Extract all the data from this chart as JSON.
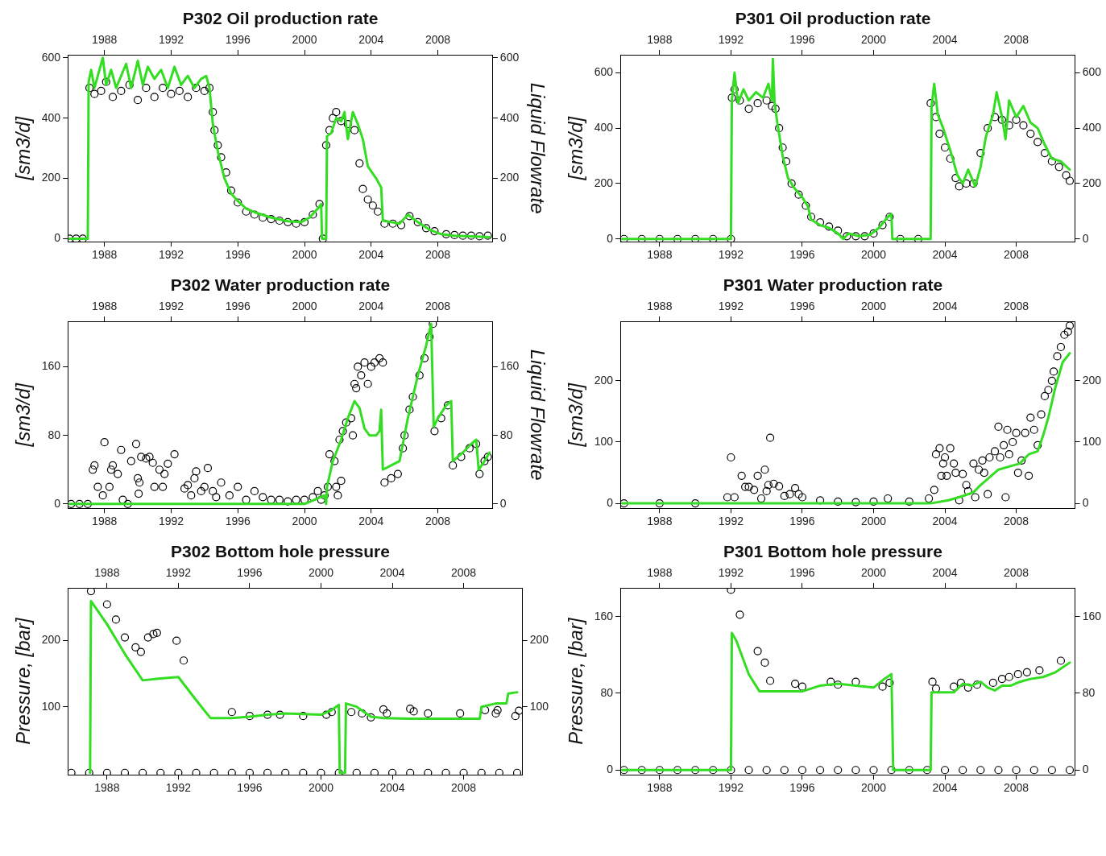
{
  "chart_data": [
    {
      "type": "line",
      "title": "P302 Oil production rate",
      "ylabel": "[sm3/d]",
      "y2label": "Liquid Flowrate",
      "xlim": [
        1985.8,
        2011.3
      ],
      "xticks": [
        1988,
        1992,
        1996,
        2000,
        2004,
        2008
      ],
      "x2lim": [
        1985.8,
        2011.3
      ],
      "x2ticks": [
        1988,
        1992,
        1996,
        2000,
        2004,
        2008
      ],
      "ylim": [
        -10,
        610
      ],
      "yticks": [
        0,
        200,
        400,
        600
      ],
      "y2lim": [
        -10,
        610
      ],
      "y2ticks": [
        0,
        200,
        400,
        600
      ],
      "grid": false,
      "legend": false,
      "line_style": "solid",
      "series": [
        {
          "type": "line",
          "color": "#33dd22",
          "x": [
            1985.9,
            1987.0,
            1987.05,
            1987.2,
            1987.4,
            1987.6,
            1987.9,
            1988.1,
            1988.4,
            1988.7,
            1989.0,
            1989.3,
            1989.6,
            1990.0,
            1990.3,
            1990.6,
            1991.0,
            1991.4,
            1991.8,
            1992.2,
            1992.6,
            1993.0,
            1993.4,
            1993.8,
            1994.1,
            1994.3,
            1994.5,
            1994.8,
            1995.2,
            1995.6,
            1996.0,
            1996.5,
            1997,
            1998,
            1999,
            1999.8,
            2000.3,
            2000.8,
            2001.0,
            2001.05,
            2001.3,
            2001.35,
            2001.6,
            2001.9,
            2002.2,
            2002.4,
            2002.6,
            2002.9,
            2003.2,
            2003.5,
            2003.8,
            2004.3,
            2004.6,
            2004.7,
            2005.2,
            2005.7,
            2006.2,
            2006.8,
            2007.5,
            2008.2,
            2009,
            2010,
            2011.1
          ],
          "values": [
            0,
            0,
            520,
            560,
            500,
            540,
            600,
            510,
            560,
            500,
            540,
            580,
            500,
            590,
            510,
            570,
            530,
            560,
            500,
            570,
            510,
            540,
            500,
            530,
            540,
            500,
            380,
            290,
            200,
            150,
            125,
            100,
            88,
            70,
            58,
            55,
            70,
            100,
            115,
            0,
            0,
            340,
            350,
            400,
            390,
            420,
            330,
            420,
            380,
            330,
            240,
            200,
            170,
            60,
            55,
            50,
            80,
            55,
            30,
            15,
            10,
            8,
            5
          ]
        },
        {
          "type": "scatter",
          "color": "#000000",
          "marker": "circle",
          "x": [
            1985.9,
            1986.3,
            1986.7,
            1987.1,
            1987.4,
            1987.8,
            1988.1,
            1988.5,
            1989,
            1989.5,
            1990,
            1990.5,
            1991,
            1991.5,
            1992,
            1992.5,
            1993,
            1993.5,
            1994,
            1994.3,
            1994.5,
            1994.6,
            1994.8,
            1995,
            1995.3,
            1995.6,
            1996,
            1996.5,
            1997,
            1997.5,
            1998,
            1998.5,
            1999,
            1999.5,
            2000,
            2000.5,
            2000.9,
            2001.1,
            2001.3,
            2001.5,
            2001.7,
            2001.9,
            2002.2,
            2002.6,
            2003,
            2003.3,
            2003.5,
            2003.8,
            2004.1,
            2004.4,
            2004.8,
            2005.3,
            2005.8,
            2006.3,
            2006.8,
            2007.3,
            2007.8,
            2008.5,
            2009,
            2009.5,
            2010,
            2010.5,
            2011
          ],
          "values": [
            0,
            0,
            0,
            500,
            480,
            490,
            520,
            470,
            490,
            510,
            460,
            500,
            470,
            500,
            480,
            490,
            470,
            500,
            490,
            500,
            420,
            360,
            310,
            270,
            220,
            160,
            120,
            90,
            80,
            70,
            65,
            60,
            55,
            50,
            55,
            80,
            115,
            0,
            310,
            360,
            400,
            420,
            390,
            380,
            360,
            250,
            165,
            130,
            110,
            90,
            50,
            50,
            45,
            75,
            55,
            35,
            25,
            15,
            12,
            10,
            10,
            8,
            10
          ]
        }
      ]
    },
    {
      "type": "line",
      "title": "P301 Oil production rate",
      "ylabel": "[sm3/d]",
      "xlim": [
        1985.8,
        2011.3
      ],
      "xticks": [
        1988,
        1992,
        1996,
        2000,
        2004,
        2008
      ],
      "x2lim": [
        1985.8,
        2011.3
      ],
      "x2ticks": [
        1988,
        1992,
        1996,
        2000,
        2004,
        2008
      ],
      "ylim": [
        -10,
        665
      ],
      "yticks": [
        0,
        200,
        400,
        600
      ],
      "y2lim": [
        -10,
        665
      ],
      "y2ticks": [
        0,
        200,
        400,
        600
      ],
      "grid": false,
      "legend": false,
      "line_style": "solid",
      "series": [
        {
          "type": "line",
          "color": "#33dd22",
          "x": [
            1985.9,
            1992.0,
            1992.05,
            1992.2,
            1992.4,
            1992.7,
            1993,
            1993.4,
            1993.8,
            1994.1,
            1994.3,
            1994.35,
            1994.45,
            1994.6,
            1994.9,
            1995.2,
            1995.6,
            1996,
            1996.3,
            1996.5,
            1997,
            1997.5,
            1998,
            1998.3,
            1998.6,
            1999.2,
            1999.8,
            2000.3,
            2000.8,
            2001.0,
            2001.05,
            2003.2,
            2003.25,
            2003.4,
            2003.6,
            2003.9,
            2004.3,
            2004.7,
            2005,
            2005.3,
            2005.7,
            2006,
            2006.3,
            2006.7,
            2006.9,
            2007.2,
            2007.4,
            2007.6,
            2008,
            2008.4,
            2008.8,
            2009.2,
            2009.6,
            2010,
            2010.5,
            2011
          ],
          "values": [
            0,
            0,
            500,
            600,
            490,
            540,
            500,
            530,
            510,
            560,
            500,
            650,
            490,
            420,
            300,
            220,
            180,
            150,
            120,
            70,
            50,
            40,
            20,
            0,
            20,
            10,
            15,
            40,
            80,
            90,
            0,
            0,
            480,
            560,
            450,
            400,
            320,
            230,
            200,
            250,
            190,
            260,
            370,
            450,
            530,
            440,
            360,
            500,
            440,
            480,
            420,
            400,
            340,
            290,
            280,
            250
          ]
        },
        {
          "type": "scatter",
          "color": "#000000",
          "marker": "circle",
          "x": [
            1986,
            1987,
            1988,
            1989,
            1990,
            1991,
            1992,
            1992.05,
            1992.2,
            1992.5,
            1993,
            1993.5,
            1994,
            1994.3,
            1994.5,
            1994.7,
            1994.9,
            1995.1,
            1995.4,
            1995.8,
            1996.2,
            1996.5,
            1997,
            1997.5,
            1998,
            1998.5,
            1999,
            1999.5,
            2000,
            2000.5,
            2000.9,
            2001.5,
            2002.5,
            2003.2,
            2003.5,
            2003.7,
            2004,
            2004.3,
            2004.6,
            2004.8,
            2005.2,
            2005.6,
            2006,
            2006.4,
            2006.8,
            2007.2,
            2007.6,
            2008,
            2008.4,
            2008.8,
            2009.2,
            2009.6,
            2010,
            2010.4,
            2010.8,
            2011
          ],
          "values": [
            0,
            0,
            0,
            0,
            0,
            0,
            0,
            510,
            540,
            500,
            470,
            490,
            500,
            480,
            470,
            400,
            330,
            280,
            200,
            160,
            120,
            80,
            60,
            45,
            30,
            10,
            10,
            10,
            20,
            50,
            80,
            0,
            0,
            490,
            440,
            380,
            330,
            290,
            220,
            190,
            200,
            200,
            310,
            400,
            440,
            430,
            410,
            430,
            410,
            380,
            350,
            310,
            280,
            260,
            230,
            210
          ]
        }
      ]
    },
    {
      "type": "line",
      "title": "P302 Water production rate",
      "ylabel": "[sm3/d]",
      "y2label": "Liquid Flowrate",
      "xlim": [
        1985.8,
        2011.3
      ],
      "xticks": [
        1988,
        1992,
        1996,
        2000,
        2004,
        2008
      ],
      "x2lim": [
        1985.8,
        2011.3
      ],
      "x2ticks": [
        1988,
        1992,
        1996,
        2000,
        2004,
        2008
      ],
      "ylim": [
        -5,
        213
      ],
      "yticks": [
        0,
        80,
        160
      ],
      "y2lim": [
        -5,
        213
      ],
      "y2ticks": [
        0,
        80,
        160
      ],
      "grid": false,
      "legend": false,
      "line_style": "solid",
      "series": [
        {
          "type": "line",
          "color": "#33dd22",
          "x": [
            1985.9,
            2000,
            2000.6,
            2001.2,
            2001.3,
            2001.35,
            2001.7,
            2002.2,
            2002.6,
            2003,
            2003.3,
            2003.6,
            2003.9,
            2004.3,
            2004.5,
            2004.6,
            2004.7,
            2005.2,
            2005.7,
            2006.2,
            2006.8,
            2007.3,
            2007.6,
            2007.75,
            2008,
            2008.5,
            2008.8,
            2008.9,
            2009.5,
            2010,
            2010.3,
            2010.45,
            2010.8,
            2011.1
          ],
          "values": [
            0,
            0,
            5,
            10,
            0,
            20,
            50,
            75,
            100,
            120,
            112,
            88,
            80,
            80,
            85,
            110,
            40,
            45,
            50,
            100,
            150,
            185,
            210,
            90,
            100,
            115,
            120,
            50,
            60,
            70,
            75,
            40,
            50,
            60
          ]
        },
        {
          "type": "scatter",
          "color": "#000000",
          "marker": "circle",
          "x": [
            1986,
            1986.5,
            1987,
            1987.3,
            1987.4,
            1987.6,
            1987.9,
            1988,
            1988.3,
            1988.4,
            1988.5,
            1988.8,
            1989,
            1989.1,
            1989.4,
            1989.6,
            1989.9,
            1990,
            1990.05,
            1990.1,
            1990.2,
            1990.5,
            1990.7,
            1990.9,
            1991,
            1991.3,
            1991.5,
            1991.6,
            1991.8,
            1992.2,
            1992.8,
            1993,
            1993.2,
            1993.4,
            1993.5,
            1993.8,
            1994,
            1994.2,
            1994.5,
            1994.7,
            1995,
            1995.5,
            1996,
            1996.5,
            1997,
            1997.5,
            1998,
            1998.5,
            1999,
            1999.5,
            2000,
            2000.5,
            2000.8,
            2001,
            2001.2,
            2001.4,
            2001.5,
            2001.8,
            2001.9,
            2002,
            2002.2,
            2002.1,
            2002.3,
            2002.5,
            2002.8,
            2002.9,
            2003,
            2003.1,
            2003.2,
            2003.4,
            2003.6,
            2003.8,
            2004,
            2004.2,
            2004.5,
            2004.7,
            2004.8,
            2005.2,
            2005.6,
            2005.9,
            2006,
            2006.3,
            2006.5,
            2006.9,
            2007.2,
            2007.5,
            2007.7,
            2007.8,
            2008.2,
            2008.6,
            2008.9,
            2009.4,
            2009.9,
            2010.3,
            2010.5,
            2010.8,
            2011
          ],
          "values": [
            0,
            0,
            0,
            40,
            45,
            20,
            10,
            72,
            20,
            40,
            45,
            35,
            63,
            5,
            0,
            50,
            70,
            30,
            12,
            25,
            55,
            53,
            55,
            48,
            20,
            40,
            20,
            35,
            47,
            58,
            18,
            22,
            10,
            30,
            38,
            15,
            20,
            42,
            15,
            8,
            25,
            10,
            20,
            5,
            15,
            8,
            5,
            5,
            3,
            5,
            5,
            8,
            15,
            5,
            10,
            20,
            58,
            50,
            20,
            10,
            27,
            75,
            85,
            95,
            100,
            80,
            140,
            135,
            160,
            150,
            165,
            140,
            160,
            165,
            170,
            165,
            25,
            30,
            35,
            65,
            80,
            110,
            125,
            150,
            170,
            195,
            210,
            85,
            100,
            115,
            45,
            55,
            65,
            70,
            35,
            50,
            55
          ]
        }
      ]
    },
    {
      "type": "line",
      "title": "P301 Water production rate",
      "ylabel": "[sm3/d]",
      "xlim": [
        1985.8,
        2011.3
      ],
      "xticks": [
        1988,
        1992,
        1996,
        2000,
        2004,
        2008
      ],
      "x2lim": [
        1985.8,
        2011.3
      ],
      "x2ticks": [
        1988,
        1992,
        1996,
        2000,
        2004,
        2008
      ],
      "ylim": [
        -8,
        297
      ],
      "yticks": [
        0,
        100,
        200
      ],
      "y2lim": [
        -8,
        297
      ],
      "y2ticks": [
        0,
        100,
        200
      ],
      "grid": false,
      "legend": false,
      "line_style": "solid",
      "series": [
        {
          "type": "line",
          "color": "#33dd22",
          "x": [
            1985.9,
            2003.2,
            2004.2,
            2005,
            2005.6,
            2006,
            2006.6,
            2007,
            2007.6,
            2008.2,
            2008.7,
            2009.2,
            2009.5,
            2009.8,
            2010.2,
            2010.6,
            2011
          ],
          "values": [
            0,
            0,
            5,
            12,
            18,
            30,
            45,
            55,
            60,
            65,
            80,
            85,
            110,
            140,
            190,
            230,
            245
          ]
        },
        {
          "type": "scatter",
          "color": "#000000",
          "marker": "circle",
          "x": [
            1986,
            1988,
            1990,
            1991.8,
            1992,
            1992.2,
            1992.6,
            1992.8,
            1993,
            1993.3,
            1993.5,
            1993.7,
            1993.9,
            1994,
            1994.1,
            1994.2,
            1994.4,
            1994.7,
            1995,
            1995.3,
            1995.6,
            1995.8,
            1996,
            1997,
            1998,
            1999,
            2000,
            2000.8,
            2002,
            2003.1,
            2003.4,
            2003.5,
            2003.7,
            2003.8,
            2003.9,
            2004,
            2004.1,
            2004.3,
            2004.5,
            2004.6,
            2004.8,
            2005,
            2005.2,
            2005.3,
            2005.6,
            2005.7,
            2005.9,
            2006.1,
            2006.2,
            2006.4,
            2006.5,
            2006.8,
            2007,
            2007.1,
            2007.3,
            2007.4,
            2007.5,
            2007.6,
            2007.8,
            2008,
            2008.1,
            2008.3,
            2008.5,
            2008.7,
            2008.8,
            2009,
            2009.2,
            2009.4,
            2009.6,
            2009.8,
            2010,
            2010.1,
            2010.3,
            2010.5,
            2010.7,
            2010.9,
            2011
          ],
          "values": [
            0,
            0,
            0,
            10,
            75,
            10,
            45,
            27,
            27,
            22,
            45,
            8,
            55,
            20,
            30,
            107,
            32,
            28,
            12,
            15,
            25,
            15,
            10,
            5,
            3,
            2,
            3,
            8,
            3,
            8,
            22,
            80,
            90,
            45,
            65,
            75,
            45,
            90,
            65,
            50,
            5,
            48,
            30,
            20,
            65,
            10,
            55,
            70,
            50,
            15,
            75,
            85,
            125,
            75,
            95,
            10,
            120,
            80,
            100,
            115,
            50,
            70,
            115,
            45,
            140,
            120,
            95,
            145,
            175,
            185,
            200,
            215,
            240,
            255,
            275,
            280,
            290
          ]
        }
      ]
    },
    {
      "type": "line",
      "title": "P302 Bottom hole pressure",
      "ylabel": "Pressure, [bar]",
      "xlim": [
        1985.8,
        2011.3
      ],
      "xticks": [
        1988,
        1992,
        1996,
        2000,
        2004,
        2008
      ],
      "x2lim": [
        1985.8,
        2011.3
      ],
      "x2ticks": [
        1988,
        1992,
        1996,
        2000,
        2004,
        2008
      ],
      "ylim": [
        -3,
        280
      ],
      "yticks": [
        100,
        200
      ],
      "y2lim": [
        -3,
        280
      ],
      "y2ticks": [
        100,
        200
      ],
      "grid": false,
      "legend": false,
      "line_style": "solid",
      "series": [
        {
          "type": "line",
          "color": "#33dd22",
          "x": [
            1987.05,
            1987.1,
            1988,
            1989,
            1990,
            1991,
            1992,
            1993,
            1993.8,
            1995,
            1996,
            1997,
            1998,
            1999,
            2000,
            2000.6,
            2001.0,
            2001.05,
            2001.35,
            2001.4,
            2002,
            2002.8,
            2003.5,
            2005,
            2008.9,
            2009,
            2009.8,
            2010.4,
            2010.5,
            2011
          ],
          "values": [
            0,
            260,
            225,
            180,
            140,
            143,
            145,
            110,
            83,
            83,
            85,
            88,
            90,
            89,
            88,
            95,
            103,
            0,
            0,
            105,
            100,
            85,
            83,
            82,
            82,
            100,
            105,
            105,
            120,
            122
          ]
        },
        {
          "type": "scatter",
          "color": "#000000",
          "marker": "circle",
          "x": [
            1986,
            1987,
            1988,
            1989,
            1990,
            1991,
            1992,
            1993,
            1994,
            1995,
            1996,
            1997,
            1998,
            1999,
            2000,
            2001,
            2002,
            2003,
            2004,
            2005,
            2006,
            2007,
            2008,
            2009,
            2010,
            2011,
            1987.1,
            1988,
            1988.5,
            1989,
            1989.6,
            1989.9,
            1990.3,
            1990.6,
            1990.8,
            1991.9,
            1992.3,
            1995,
            1996,
            1997,
            1997.7,
            1999,
            2000.3,
            2000.6,
            2001.7,
            2002.3,
            2002.8,
            2003.5,
            2003.7,
            2005,
            2005.2,
            2006,
            2007.8,
            2009.2,
            2009.8,
            2009.9,
            2010.9,
            2011.1
          ],
          "values": [
            0,
            0,
            0,
            0,
            0,
            0,
            0,
            0,
            0,
            0,
            0,
            0,
            0,
            0,
            0,
            0,
            0,
            0,
            0,
            0,
            0,
            0,
            0,
            0,
            0,
            0,
            275,
            255,
            232,
            205,
            190,
            183,
            205,
            210,
            212,
            200,
            170,
            92,
            86,
            88,
            88,
            86,
            88,
            92,
            92,
            90,
            84,
            96,
            90,
            97,
            93,
            90,
            90,
            95,
            90,
            95,
            86,
            94
          ]
        }
      ]
    },
    {
      "type": "line",
      "title": "P301 Bottom hole pressure",
      "ylabel": "Pressure, [bar]",
      "xlim": [
        1985.8,
        2011.3
      ],
      "xticks": [
        1988,
        1992,
        1996,
        2000,
        2004,
        2008
      ],
      "x2lim": [
        1985.8,
        2011.3
      ],
      "x2ticks": [
        1988,
        1992,
        1996,
        2000,
        2004,
        2008
      ],
      "ylim": [
        -5,
        190
      ],
      "yticks": [
        0,
        80,
        160
      ],
      "y2lim": [
        -5,
        190
      ],
      "y2ticks": [
        0,
        80,
        160
      ],
      "grid": false,
      "legend": false,
      "line_style": "solid",
      "series": [
        {
          "type": "line",
          "color": "#33dd22",
          "x": [
            1985.9,
            1992,
            1992.05,
            1992.3,
            1993,
            1993.6,
            1995,
            1996,
            1997,
            1998,
            1999,
            2000,
            2000.6,
            2001,
            2001.1,
            2003.2,
            2003.25,
            2004.5,
            2005,
            2005.5,
            2006,
            2006.4,
            2006.8,
            2007.2,
            2007.7,
            2008.2,
            2008.8,
            2009.5,
            2010.2,
            2011
          ],
          "values": [
            0,
            0,
            143,
            135,
            100,
            82,
            82,
            82,
            88,
            90,
            88,
            86,
            95,
            100,
            0,
            0,
            81,
            81,
            90,
            88,
            92,
            86,
            83,
            88,
            88,
            92,
            95,
            97,
            102,
            112
          ]
        },
        {
          "type": "scatter",
          "color": "#000000",
          "marker": "circle",
          "x": [
            1986,
            1987,
            1988,
            1989,
            1990,
            1991,
            1992,
            1993,
            1994,
            1995,
            1996,
            1997,
            1998,
            1999,
            2000,
            2001,
            2002,
            2003,
            2004,
            2005,
            2006,
            2007,
            2008,
            2009,
            2010,
            2011,
            1992,
            1992.5,
            1993.5,
            1993.9,
            1994.2,
            1995.6,
            1996,
            1997.6,
            1998,
            1999,
            2000.5,
            2000.9,
            2003.3,
            2003.5,
            2004.5,
            2004.9,
            2005.3,
            2005.8,
            2006.7,
            2007.2,
            2007.6,
            2008.1,
            2008.6,
            2009.3,
            2010.5
          ],
          "values": [
            0,
            0,
            0,
            0,
            0,
            0,
            0,
            0,
            0,
            0,
            0,
            0,
            0,
            0,
            0,
            0,
            0,
            0,
            0,
            0,
            0,
            0,
            0,
            0,
            0,
            0,
            188,
            162,
            124,
            112,
            93,
            90,
            87,
            92,
            89,
            92,
            87,
            91,
            92,
            85,
            87,
            91,
            86,
            89,
            91,
            95,
            97,
            100,
            102,
            104,
            114
          ]
        }
      ]
    }
  ]
}
